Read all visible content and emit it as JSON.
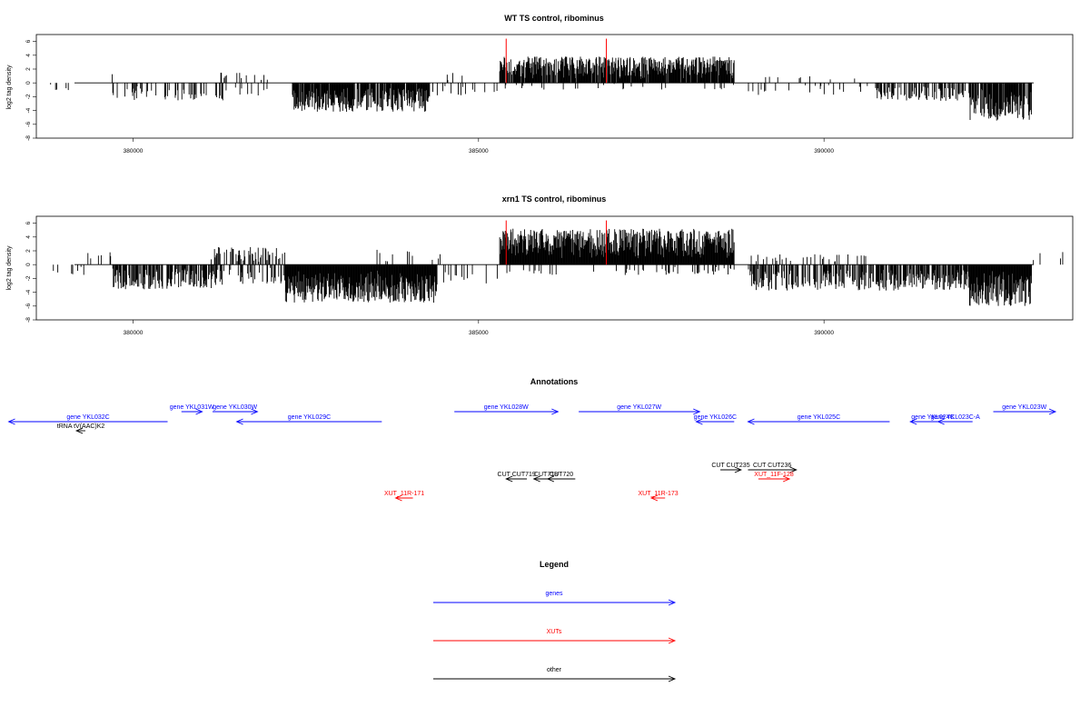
{
  "chart_data": [
    {
      "type": "bar",
      "title": "WT TS control, ribominus",
      "ylabel": "log2 tag density",
      "xlabel": "",
      "ylim": [
        -8,
        7
      ],
      "yticks": [
        6,
        4,
        2,
        0,
        -2,
        -4,
        -6,
        -8
      ],
      "xlim": [
        378600,
        393600
      ],
      "xticks": [
        380000,
        385000,
        390000
      ],
      "xtick_labels": [
        "380000",
        "385000",
        "390000"
      ],
      "color": "#000000",
      "marker_color": "#ff0000",
      "markers_x": [
        385400,
        386850
      ],
      "regions": [
        {
          "start": 378800,
          "end": 379300,
          "sign": -1,
          "amp": 1.2,
          "density": 0.08
        },
        {
          "start": 379300,
          "end": 379700,
          "sign": 1,
          "amp": 1.6,
          "density": 0.06
        },
        {
          "start": 379700,
          "end": 381300,
          "sign": -1,
          "amp": 2.6,
          "density": 0.25
        },
        {
          "start": 381200,
          "end": 382000,
          "sign": 1,
          "amp": 1.5,
          "density": 0.12
        },
        {
          "start": 381300,
          "end": 382000,
          "sign": -1,
          "amp": 2.0,
          "density": 0.12
        },
        {
          "start": 382300,
          "end": 384300,
          "sign": -1,
          "amp": 4.2,
          "density": 0.9
        },
        {
          "start": 384300,
          "end": 384900,
          "sign": 1,
          "amp": 1.5,
          "density": 0.05
        },
        {
          "start": 384300,
          "end": 385300,
          "sign": -1,
          "amp": 1.8,
          "density": 0.08
        },
        {
          "start": 385300,
          "end": 388700,
          "sign": 1,
          "amp": 3.8,
          "density": 0.9
        },
        {
          "start": 385300,
          "end": 388700,
          "sign": -1,
          "amp": 1.0,
          "density": 0.06
        },
        {
          "start": 388900,
          "end": 390700,
          "sign": -1,
          "amp": 1.8,
          "density": 0.08
        },
        {
          "start": 388900,
          "end": 390700,
          "sign": 1,
          "amp": 1.0,
          "density": 0.04
        },
        {
          "start": 390700,
          "end": 392100,
          "sign": -1,
          "amp": 2.6,
          "density": 0.45
        },
        {
          "start": 392100,
          "end": 393000,
          "sign": -1,
          "amp": 5.5,
          "density": 0.9
        },
        {
          "start": 393000,
          "end": 393500,
          "sign": 1,
          "amp": 1.2,
          "density": 0.05
        }
      ]
    },
    {
      "type": "bar",
      "title": "xrn1 TS control, ribominus",
      "ylabel": "log2 tag density",
      "xlabel": "",
      "ylim": [
        -8,
        7
      ],
      "yticks": [
        6,
        4,
        2,
        0,
        -2,
        -4,
        -6,
        -8
      ],
      "xlim": [
        378600,
        393600
      ],
      "xticks": [
        380000,
        385000,
        390000
      ],
      "xtick_labels": [
        "380000",
        "385000",
        "390000"
      ],
      "color": "#000000",
      "marker_color": "#ff0000",
      "markers_x": [
        385400,
        386850
      ],
      "regions": [
        {
          "start": 378800,
          "end": 379300,
          "sign": -1,
          "amp": 1.5,
          "density": 0.12
        },
        {
          "start": 379300,
          "end": 379700,
          "sign": 1,
          "amp": 1.8,
          "density": 0.1
        },
        {
          "start": 379700,
          "end": 381300,
          "sign": -1,
          "amp": 3.6,
          "density": 0.6
        },
        {
          "start": 381100,
          "end": 382200,
          "sign": 1,
          "amp": 2.6,
          "density": 0.35
        },
        {
          "start": 381300,
          "end": 382200,
          "sign": -1,
          "amp": 2.8,
          "density": 0.3
        },
        {
          "start": 382200,
          "end": 384400,
          "sign": -1,
          "amp": 5.5,
          "density": 1.0
        },
        {
          "start": 383500,
          "end": 384500,
          "sign": 1,
          "amp": 2.2,
          "density": 0.12
        },
        {
          "start": 384400,
          "end": 385300,
          "sign": -1,
          "amp": 3.0,
          "density": 0.12
        },
        {
          "start": 385300,
          "end": 388700,
          "sign": 1,
          "amp": 5.2,
          "density": 1.0
        },
        {
          "start": 385300,
          "end": 388700,
          "sign": -1,
          "amp": 1.5,
          "density": 0.12
        },
        {
          "start": 388900,
          "end": 390700,
          "sign": -1,
          "amp": 3.8,
          "density": 0.6
        },
        {
          "start": 388900,
          "end": 390700,
          "sign": 1,
          "amp": 1.5,
          "density": 0.1
        },
        {
          "start": 390700,
          "end": 392100,
          "sign": -1,
          "amp": 3.8,
          "density": 0.7
        },
        {
          "start": 392100,
          "end": 393000,
          "sign": -1,
          "amp": 6.0,
          "density": 1.0
        },
        {
          "start": 393000,
          "end": 393500,
          "sign": 1,
          "amp": 2.0,
          "density": 0.15
        }
      ]
    }
  ],
  "annotations": {
    "title": "Annotations",
    "features": [
      {
        "label": "tRNA tV(AAC)K2",
        "start": 379310,
        "end": 379180,
        "strand": "-",
        "color": "#000000",
        "row": 3
      },
      {
        "label": "gene YKL032C",
        "start": 380500,
        "end": 378200,
        "strand": "-",
        "color": "#0000ff",
        "row": 2
      },
      {
        "label": "gene YKL031W",
        "start": 380700,
        "end": 381000,
        "strand": "+",
        "color": "#0000ff",
        "row": 0
      },
      {
        "label": "gene YKL030W",
        "start": 381150,
        "end": 381800,
        "strand": "+",
        "color": "#0000ff",
        "row": 0
      },
      {
        "label": "gene YKL029C",
        "start": 383600,
        "end": 381500,
        "strand": "-",
        "color": "#0000ff",
        "row": 2
      },
      {
        "label": "gene YKL028W",
        "start": 384650,
        "end": 386150,
        "strand": "+",
        "color": "#0000ff",
        "row": 1
      },
      {
        "label": "gene YKL027W",
        "start": 386450,
        "end": 388200,
        "strand": "+",
        "color": "#0000ff",
        "row": 1
      },
      {
        "label": "gene YKL026C",
        "start": 388700,
        "end": 388150,
        "strand": "-",
        "color": "#0000ff",
        "row": 2
      },
      {
        "label": "gene YKL025C",
        "start": 390950,
        "end": 388900,
        "strand": "-",
        "color": "#0000ff",
        "row": 2
      },
      {
        "label": "gene YKL024C",
        "start": 391900,
        "end": 391250,
        "strand": "-",
        "color": "#0000ff",
        "row": 2
      },
      {
        "label": "gene YKL023C-A",
        "start": 392150,
        "end": 391650,
        "strand": "-",
        "color": "#0000ff",
        "row": 2
      },
      {
        "label": "gene YKL023W",
        "start": 392450,
        "end": 393350,
        "strand": "+",
        "color": "#0000ff",
        "row": 1
      },
      {
        "label": "CUT CUT719",
        "start": 385700,
        "end": 385400,
        "strand": "-",
        "color": "#000000",
        "row": 5
      },
      {
        "label": "CUT718",
        "start": 386150,
        "end": 385800,
        "strand": "-",
        "color": "#000000",
        "row": 5
      },
      {
        "label": "CUT720",
        "start": 386400,
        "end": 386000,
        "strand": "-",
        "color": "#000000",
        "row": 5
      },
      {
        "label": "CUT CUT235",
        "start": 388500,
        "end": 388800,
        "strand": "+",
        "color": "#000000",
        "row": 4
      },
      {
        "label": "CUT CUT236",
        "start": 388900,
        "end": 389600,
        "strand": "+",
        "color": "#000000",
        "row": 4
      },
      {
        "label": "XUT_11R-171",
        "start": 384050,
        "end": 383800,
        "strand": "-",
        "color": "#ff0000",
        "row": 6
      },
      {
        "label": "XUT_11R-173",
        "start": 387700,
        "end": 387500,
        "strand": "-",
        "color": "#ff0000",
        "row": 6
      },
      {
        "label": "XUT_11F-128",
        "start": 389050,
        "end": 389500,
        "strand": "+",
        "color": "#ff0000",
        "row": 5
      }
    ]
  },
  "legend": {
    "title": "Legend",
    "items": [
      {
        "label": "genes",
        "color": "#0000ff"
      },
      {
        "label": "XUTs",
        "color": "#ff0000"
      },
      {
        "label": "other",
        "color": "#000000"
      }
    ]
  }
}
